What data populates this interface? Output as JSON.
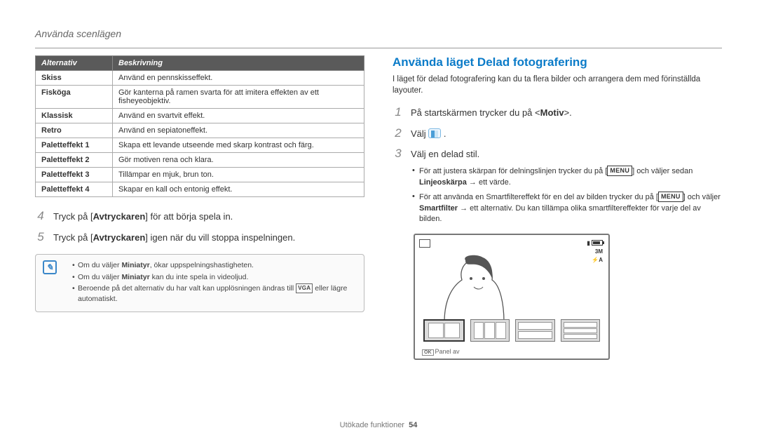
{
  "breadcrumb": "Använda scenlägen",
  "table": {
    "headers": [
      "Alternativ",
      "Beskrivning"
    ],
    "rows": [
      [
        "Skiss",
        "Använd en pennskisseffekt."
      ],
      [
        "Fisköga",
        "Gör kanterna på ramen svarta för att imitera effekten av ett fisheyeobjektiv."
      ],
      [
        "Klassisk",
        "Använd en svartvit effekt."
      ],
      [
        "Retro",
        "Använd en sepiatoneffekt."
      ],
      [
        "Paletteffekt 1",
        "Skapa ett levande utseende med skarp kontrast och färg."
      ],
      [
        "Paletteffekt 2",
        "Gör motiven rena och klara."
      ],
      [
        "Paletteffekt 3",
        "Tillämpar en mjuk, brun ton."
      ],
      [
        "Paletteffekt 4",
        "Skapar en kall och entonig effekt."
      ]
    ]
  },
  "left_steps": {
    "s4_pre": "Tryck på [",
    "s4_bold": "Avtryckaren",
    "s4_post": "] för att börja spela in.",
    "s5_pre": "Tryck på [",
    "s5_bold": "Avtryckaren",
    "s5_post": "] igen när du vill stoppa inspelningen."
  },
  "notes": {
    "n1_pre": "Om du väljer ",
    "n1_bold": "Miniatyr",
    "n1_post": ", ökar uppspelningshastigheten.",
    "n2_pre": "Om du väljer ",
    "n2_bold": "Miniatyr",
    "n2_post": " kan du inte spela in videoljud.",
    "n3_pre": "Beroende på det alternativ du har valt kan upplösningen ändras till ",
    "n3_post": " eller lägre automatiskt."
  },
  "vga": "VGA",
  "right": {
    "title": "Använda läget Delad fotografering",
    "intro": "I läget för delad fotografering kan du ta flera bilder och arrangera dem med förinställda layouter.",
    "s1_pre": "På startskärmen trycker du på <",
    "s1_bold": "Motiv",
    "s1_post": ">.",
    "s2": "Välj ",
    "s3": "Välj en delad stil.",
    "b1_pre": "För att justera skärpan för delningslinjen trycker du på [",
    "b1_mid": "] och väljer sedan ",
    "b1_bold": "Linjeoskärpa",
    "b1_post": " → ett värde.",
    "b2_pre": "För att använda en Smartfiltereffekt för en del av bilden trycker du på [",
    "b2_mid": "] och väljer ",
    "b2_bold": "Smartfilter",
    "b2_post": " → ett alternativ. Du kan tillämpa olika smartfiltereffekter för varje del av bilden."
  },
  "menu_label": "MENU",
  "screen": {
    "size": "3M",
    "flash": "⚡A",
    "footer": "Panel av",
    "ok": "OK"
  },
  "footer": {
    "label": "Utökade funktioner",
    "page": "54"
  }
}
